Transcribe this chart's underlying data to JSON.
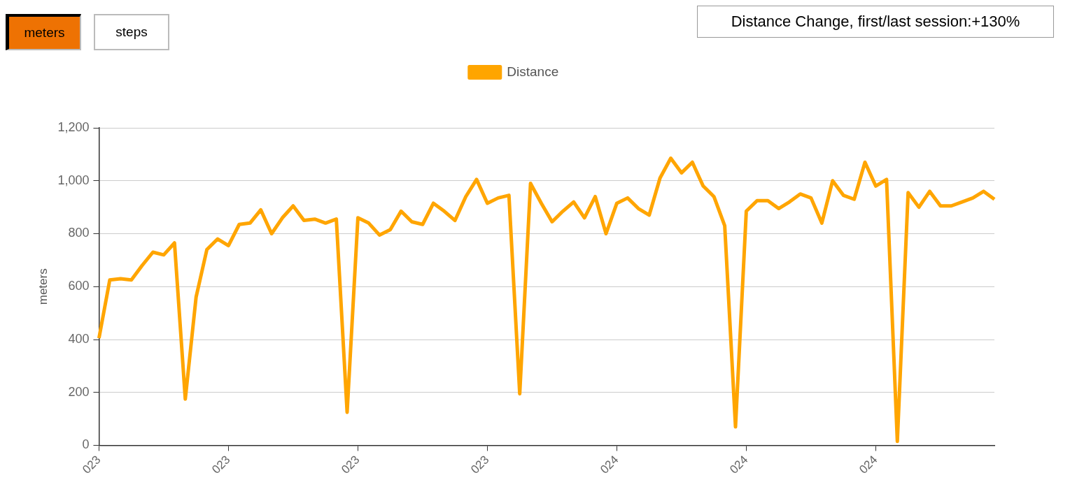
{
  "chart_data": {
    "type": "line",
    "annotations": [
      "meters",
      "steps",
      "Distance Change, first/last session:+130%"
    ],
    "ylabel": "meters",
    "categories": [
      "023",
      null,
      null,
      null,
      null,
      null,
      null,
      null,
      null,
      null,
      null,
      null,
      "023",
      null,
      null,
      null,
      null,
      null,
      null,
      null,
      null,
      null,
      null,
      null,
      "023",
      null,
      null,
      null,
      null,
      null,
      null,
      null,
      null,
      null,
      null,
      null,
      "023",
      null,
      null,
      null,
      null,
      null,
      null,
      null,
      null,
      null,
      null,
      null,
      "024",
      null,
      null,
      null,
      null,
      null,
      null,
      null,
      null,
      null,
      null,
      null,
      "024",
      null,
      null,
      null,
      null,
      null,
      null,
      null,
      null,
      null,
      null,
      null,
      "024",
      null,
      null,
      null,
      null,
      null,
      null,
      null,
      null,
      null,
      null,
      null
    ],
    "series": [
      {
        "name": "Distance",
        "color": "#ffa500",
        "values": [
          405,
          625,
          630,
          625,
          680,
          730,
          720,
          765,
          175,
          560,
          740,
          780,
          755,
          835,
          840,
          890,
          800,
          860,
          905,
          850,
          855,
          840,
          855,
          125,
          860,
          840,
          795,
          815,
          885,
          845,
          835,
          915,
          885,
          850,
          940,
          1005,
          915,
          935,
          945,
          195,
          990,
          915,
          845,
          885,
          920,
          860,
          940,
          800,
          915,
          935,
          895,
          870,
          1010,
          1085,
          1030,
          1070,
          980,
          940,
          830,
          70,
          885,
          925,
          925,
          895,
          920,
          950,
          935,
          840,
          1000,
          945,
          930,
          1070,
          980,
          1005,
          15,
          955,
          900,
          960,
          905,
          905,
          920,
          935,
          960,
          930
        ]
      }
    ],
    "ylim": [
      0,
      1200
    ],
    "yticks": [
      0,
      200,
      400,
      600,
      800,
      {
        "value": 1000,
        "label": "1,000"
      },
      {
        "value": 1200,
        "label": "1,200"
      }
    ],
    "grid": "y",
    "legend": "top",
    "line_style": "solid"
  }
}
